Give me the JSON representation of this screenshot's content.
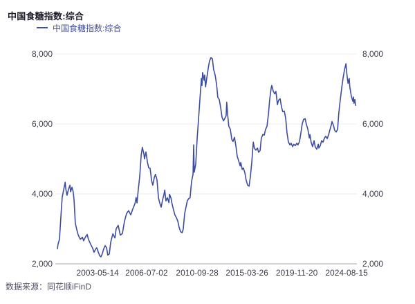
{
  "header": {
    "title": "中国食糖指数:综合"
  },
  "legend": {
    "label": "中国食糖指数:综合",
    "swatch_color": "#3c4da0"
  },
  "footer": {
    "source": "数据来源：同花顺iFinD"
  },
  "chart_data": {
    "type": "line",
    "title": "中国食糖指数:综合",
    "xlabel": "",
    "ylabel": "",
    "ylim": [
      2000,
      8000
    ],
    "grid": "horizontal",
    "legend_position": "top-left",
    "colors": {
      "line": "#3c4da0",
      "grid": "#ededf2",
      "axis_line": "#a3a3ad",
      "tick_text": "#3d3d4d"
    },
    "yticks": [
      {
        "label": "2,000",
        "value": 2000
      },
      {
        "label": "4,000",
        "value": 4000
      },
      {
        "label": "6,000",
        "value": 6000
      },
      {
        "label": "8,000",
        "value": 8000
      }
    ],
    "xticks": [
      {
        "label": "2003-05-14",
        "t": 0.135
      },
      {
        "label": "2006-07-02",
        "t": 0.299
      },
      {
        "label": "2010-09-28",
        "t": 0.469
      },
      {
        "label": "2015-03-26",
        "t": 0.636
      },
      {
        "label": "2019-11-20",
        "t": 0.803
      },
      {
        "label": "2024-08-15",
        "t": 0.97
      }
    ],
    "series": [
      {
        "name": "中国食糖指数:综合",
        "color": "#3c4da0",
        "points": [
          [
            0.0,
            2430
          ],
          [
            0.002,
            2560
          ],
          [
            0.007,
            2700
          ],
          [
            0.012,
            3400
          ],
          [
            0.016,
            3900
          ],
          [
            0.021,
            4120
          ],
          [
            0.026,
            4330
          ],
          [
            0.028,
            4150
          ],
          [
            0.032,
            3960
          ],
          [
            0.037,
            4120
          ],
          [
            0.042,
            4250
          ],
          [
            0.044,
            4060
          ],
          [
            0.049,
            4190
          ],
          [
            0.053,
            4060
          ],
          [
            0.056,
            3820
          ],
          [
            0.06,
            3160
          ],
          [
            0.065,
            2980
          ],
          [
            0.07,
            2820
          ],
          [
            0.077,
            2700
          ],
          [
            0.084,
            2760
          ],
          [
            0.088,
            2660
          ],
          [
            0.095,
            2780
          ],
          [
            0.1,
            2840
          ],
          [
            0.104,
            2700
          ],
          [
            0.111,
            2570
          ],
          [
            0.118,
            2450
          ],
          [
            0.123,
            2330
          ],
          [
            0.128,
            2420
          ],
          [
            0.132,
            2460
          ],
          [
            0.137,
            2340
          ],
          [
            0.142,
            2230
          ],
          [
            0.146,
            2200
          ],
          [
            0.151,
            2300
          ],
          [
            0.155,
            2420
          ],
          [
            0.16,
            2520
          ],
          [
            0.165,
            2460
          ],
          [
            0.169,
            2250
          ],
          [
            0.174,
            2280
          ],
          [
            0.179,
            2620
          ],
          [
            0.186,
            2860
          ],
          [
            0.193,
            2740
          ],
          [
            0.197,
            3000
          ],
          [
            0.204,
            3100
          ],
          [
            0.211,
            2820
          ],
          [
            0.218,
            2870
          ],
          [
            0.225,
            3220
          ],
          [
            0.232,
            3440
          ],
          [
            0.239,
            3520
          ],
          [
            0.246,
            3400
          ],
          [
            0.253,
            3570
          ],
          [
            0.26,
            3720
          ],
          [
            0.264,
            3900
          ],
          [
            0.267,
            3740
          ],
          [
            0.271,
            4100
          ],
          [
            0.276,
            4500
          ],
          [
            0.281,
            5100
          ],
          [
            0.285,
            5330
          ],
          [
            0.29,
            5150
          ],
          [
            0.292,
            5000
          ],
          [
            0.297,
            5200
          ],
          [
            0.302,
            4900
          ],
          [
            0.306,
            4750
          ],
          [
            0.311,
            4730
          ],
          [
            0.316,
            4380
          ],
          [
            0.32,
            4250
          ],
          [
            0.325,
            4470
          ],
          [
            0.329,
            4560
          ],
          [
            0.334,
            4400
          ],
          [
            0.339,
            3890
          ],
          [
            0.343,
            3750
          ],
          [
            0.348,
            3620
          ],
          [
            0.353,
            3830
          ],
          [
            0.357,
            3970
          ],
          [
            0.36,
            4110
          ],
          [
            0.364,
            3800
          ],
          [
            0.369,
            3890
          ],
          [
            0.374,
            3750
          ],
          [
            0.376,
            3990
          ],
          [
            0.381,
            3880
          ],
          [
            0.385,
            3700
          ],
          [
            0.39,
            3530
          ],
          [
            0.394,
            3400
          ],
          [
            0.399,
            3320
          ],
          [
            0.404,
            3220
          ],
          [
            0.408,
            3060
          ],
          [
            0.413,
            2920
          ],
          [
            0.418,
            2890
          ],
          [
            0.422,
            2990
          ],
          [
            0.427,
            3440
          ],
          [
            0.432,
            3650
          ],
          [
            0.436,
            3810
          ],
          [
            0.441,
            3870
          ],
          [
            0.445,
            3890
          ],
          [
            0.45,
            4360
          ],
          [
            0.455,
            4560
          ],
          [
            0.457,
            5400
          ],
          [
            0.459,
            4620
          ],
          [
            0.464,
            4850
          ],
          [
            0.469,
            5600
          ],
          [
            0.473,
            6100
          ],
          [
            0.478,
            6700
          ],
          [
            0.483,
            7300
          ],
          [
            0.485,
            7100
          ],
          [
            0.487,
            7470
          ],
          [
            0.492,
            7250
          ],
          [
            0.494,
            7400
          ],
          [
            0.497,
            7060
          ],
          [
            0.501,
            7300
          ],
          [
            0.506,
            7600
          ],
          [
            0.51,
            7790
          ],
          [
            0.515,
            7900
          ],
          [
            0.52,
            7860
          ],
          [
            0.524,
            7560
          ],
          [
            0.529,
            7400
          ],
          [
            0.534,
            7120
          ],
          [
            0.538,
            6760
          ],
          [
            0.543,
            6700
          ],
          [
            0.548,
            6450
          ],
          [
            0.552,
            6200
          ],
          [
            0.557,
            6090
          ],
          [
            0.561,
            6150
          ],
          [
            0.566,
            6230
          ],
          [
            0.568,
            6620
          ],
          [
            0.571,
            6280
          ],
          [
            0.575,
            5930
          ],
          [
            0.58,
            5850
          ],
          [
            0.585,
            5560
          ],
          [
            0.589,
            5500
          ],
          [
            0.594,
            5620
          ],
          [
            0.599,
            5350
          ],
          [
            0.603,
            5080
          ],
          [
            0.608,
            4950
          ],
          [
            0.613,
            4800
          ],
          [
            0.615,
            4900
          ],
          [
            0.62,
            4700
          ],
          [
            0.624,
            4740
          ],
          [
            0.629,
            4600
          ],
          [
            0.633,
            4400
          ],
          [
            0.638,
            4250
          ],
          [
            0.643,
            4220
          ],
          [
            0.647,
            4480
          ],
          [
            0.652,
            4900
          ],
          [
            0.657,
            5480
          ],
          [
            0.661,
            5300
          ],
          [
            0.666,
            5250
          ],
          [
            0.671,
            5310
          ],
          [
            0.675,
            5190
          ],
          [
            0.68,
            5240
          ],
          [
            0.684,
            5590
          ],
          [
            0.689,
            5700
          ],
          [
            0.694,
            5680
          ],
          [
            0.698,
            5840
          ],
          [
            0.703,
            5930
          ],
          [
            0.708,
            6280
          ],
          [
            0.712,
            6700
          ],
          [
            0.717,
            7020
          ],
          [
            0.719,
            7100
          ],
          [
            0.724,
            6940
          ],
          [
            0.729,
            6860
          ],
          [
            0.733,
            6930
          ],
          [
            0.738,
            6550
          ],
          [
            0.742,
            6680
          ],
          [
            0.747,
            6720
          ],
          [
            0.752,
            6480
          ],
          [
            0.756,
            6350
          ],
          [
            0.761,
            6370
          ],
          [
            0.766,
            6150
          ],
          [
            0.77,
            5750
          ],
          [
            0.775,
            5480
          ],
          [
            0.78,
            5400
          ],
          [
            0.784,
            5450
          ],
          [
            0.789,
            5350
          ],
          [
            0.793,
            5420
          ],
          [
            0.798,
            5380
          ],
          [
            0.803,
            5450
          ],
          [
            0.807,
            5400
          ],
          [
            0.812,
            5500
          ],
          [
            0.817,
            5750
          ],
          [
            0.821,
            6000
          ],
          [
            0.826,
            6130
          ],
          [
            0.831,
            6150
          ],
          [
            0.835,
            5990
          ],
          [
            0.84,
            5860
          ],
          [
            0.845,
            5600
          ],
          [
            0.847,
            5700
          ],
          [
            0.851,
            5480
          ],
          [
            0.856,
            5350
          ],
          [
            0.861,
            5520
          ],
          [
            0.865,
            5340
          ],
          [
            0.87,
            5280
          ],
          [
            0.875,
            5420
          ],
          [
            0.877,
            5310
          ],
          [
            0.882,
            5380
          ],
          [
            0.886,
            5520
          ],
          [
            0.891,
            5480
          ],
          [
            0.896,
            5600
          ],
          [
            0.9,
            5650
          ],
          [
            0.905,
            5580
          ],
          [
            0.91,
            5700
          ],
          [
            0.914,
            5830
          ],
          [
            0.919,
            5980
          ],
          [
            0.921,
            6070
          ],
          [
            0.926,
            5960
          ],
          [
            0.93,
            5820
          ],
          [
            0.935,
            5770
          ],
          [
            0.94,
            5850
          ],
          [
            0.944,
            6330
          ],
          [
            0.949,
            6700
          ],
          [
            0.954,
            7050
          ],
          [
            0.958,
            7300
          ],
          [
            0.963,
            7550
          ],
          [
            0.968,
            7720
          ],
          [
            0.97,
            7500
          ],
          [
            0.972,
            7360
          ],
          [
            0.975,
            7160
          ],
          [
            0.977,
            7250
          ],
          [
            0.979,
            7300
          ],
          [
            0.981,
            7050
          ],
          [
            0.986,
            6790
          ],
          [
            0.991,
            6650
          ],
          [
            0.993,
            6770
          ],
          [
            0.995,
            6590
          ],
          [
            0.998,
            6700
          ],
          [
            1.0,
            6530
          ]
        ]
      }
    ]
  }
}
